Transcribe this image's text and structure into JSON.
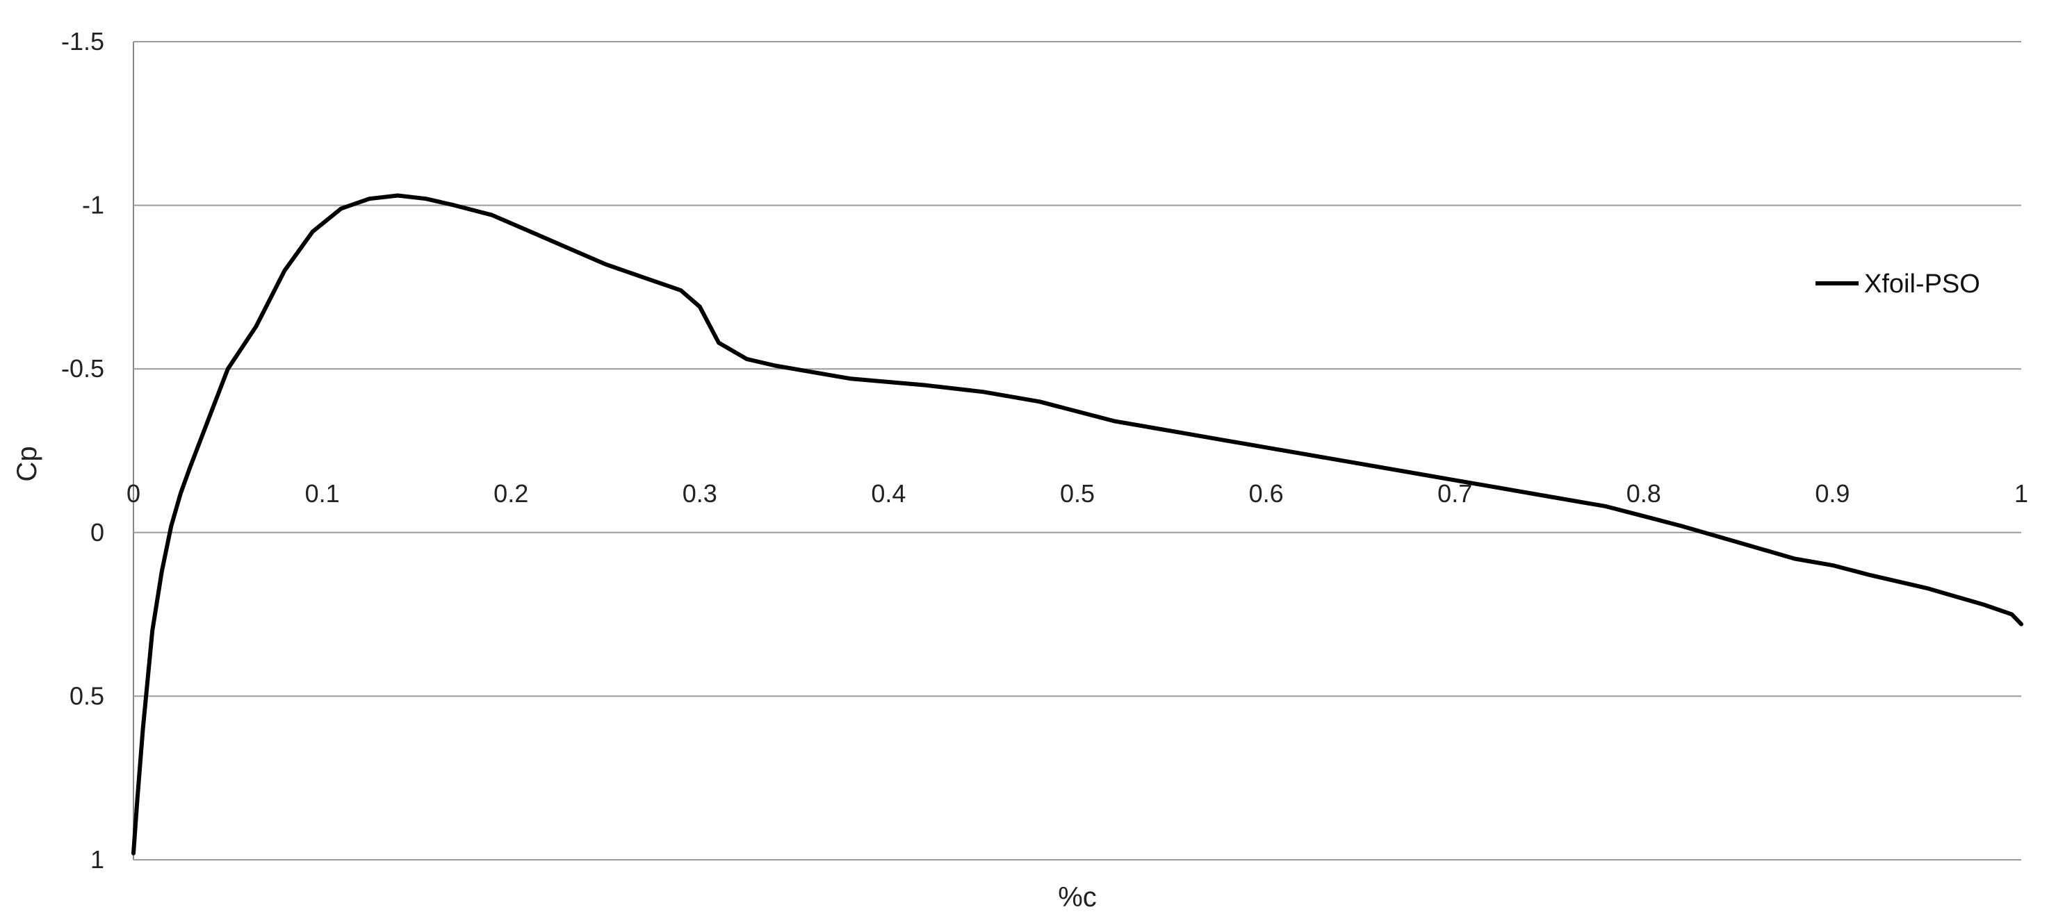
{
  "chart_data": {
    "type": "line",
    "title": "",
    "xlabel": "%c",
    "ylabel": "Cp",
    "xlim": [
      0,
      1
    ],
    "ylim": [
      -1.5,
      1
    ],
    "y_axis_inverted": true,
    "grid": "horizontal",
    "legend_position": "right",
    "x_ticks": [
      "0",
      "0.1",
      "0.2",
      "0.3",
      "0.4",
      "0.5",
      "0.6",
      "0.7",
      "0.8",
      "0.9",
      "1"
    ],
    "y_ticks": [
      "-1.5",
      "-1",
      "-0.5",
      "0",
      "0.5",
      "1"
    ],
    "series": [
      {
        "name": "Xfoil-PSO",
        "color": "#000000",
        "x": [
          0.0,
          0.002,
          0.005,
          0.01,
          0.015,
          0.02,
          0.025,
          0.03,
          0.04,
          0.05,
          0.065,
          0.08,
          0.095,
          0.11,
          0.125,
          0.14,
          0.155,
          0.17,
          0.19,
          0.21,
          0.23,
          0.25,
          0.27,
          0.29,
          0.3,
          0.31,
          0.325,
          0.34,
          0.36,
          0.38,
          0.4,
          0.42,
          0.45,
          0.48,
          0.5,
          0.52,
          0.55,
          0.58,
          0.6,
          0.62,
          0.65,
          0.68,
          0.7,
          0.72,
          0.75,
          0.78,
          0.8,
          0.82,
          0.85,
          0.88,
          0.9,
          0.92,
          0.95,
          0.98,
          0.995,
          1.0
        ],
        "values": [
          0.98,
          0.82,
          0.6,
          0.3,
          0.12,
          -0.02,
          -0.12,
          -0.2,
          -0.35,
          -0.5,
          -0.63,
          -0.8,
          -0.92,
          -0.99,
          -1.02,
          -1.03,
          -1.02,
          -1.0,
          -0.97,
          -0.92,
          -0.87,
          -0.82,
          -0.78,
          -0.74,
          -0.69,
          -0.58,
          -0.53,
          -0.51,
          -0.49,
          -0.47,
          -0.46,
          -0.45,
          -0.43,
          -0.4,
          -0.37,
          -0.34,
          -0.31,
          -0.28,
          -0.26,
          -0.24,
          -0.21,
          -0.18,
          -0.16,
          -0.14,
          -0.11,
          -0.08,
          -0.05,
          -0.02,
          0.03,
          0.08,
          0.1,
          0.13,
          0.17,
          0.22,
          0.25,
          0.28
        ]
      }
    ]
  }
}
